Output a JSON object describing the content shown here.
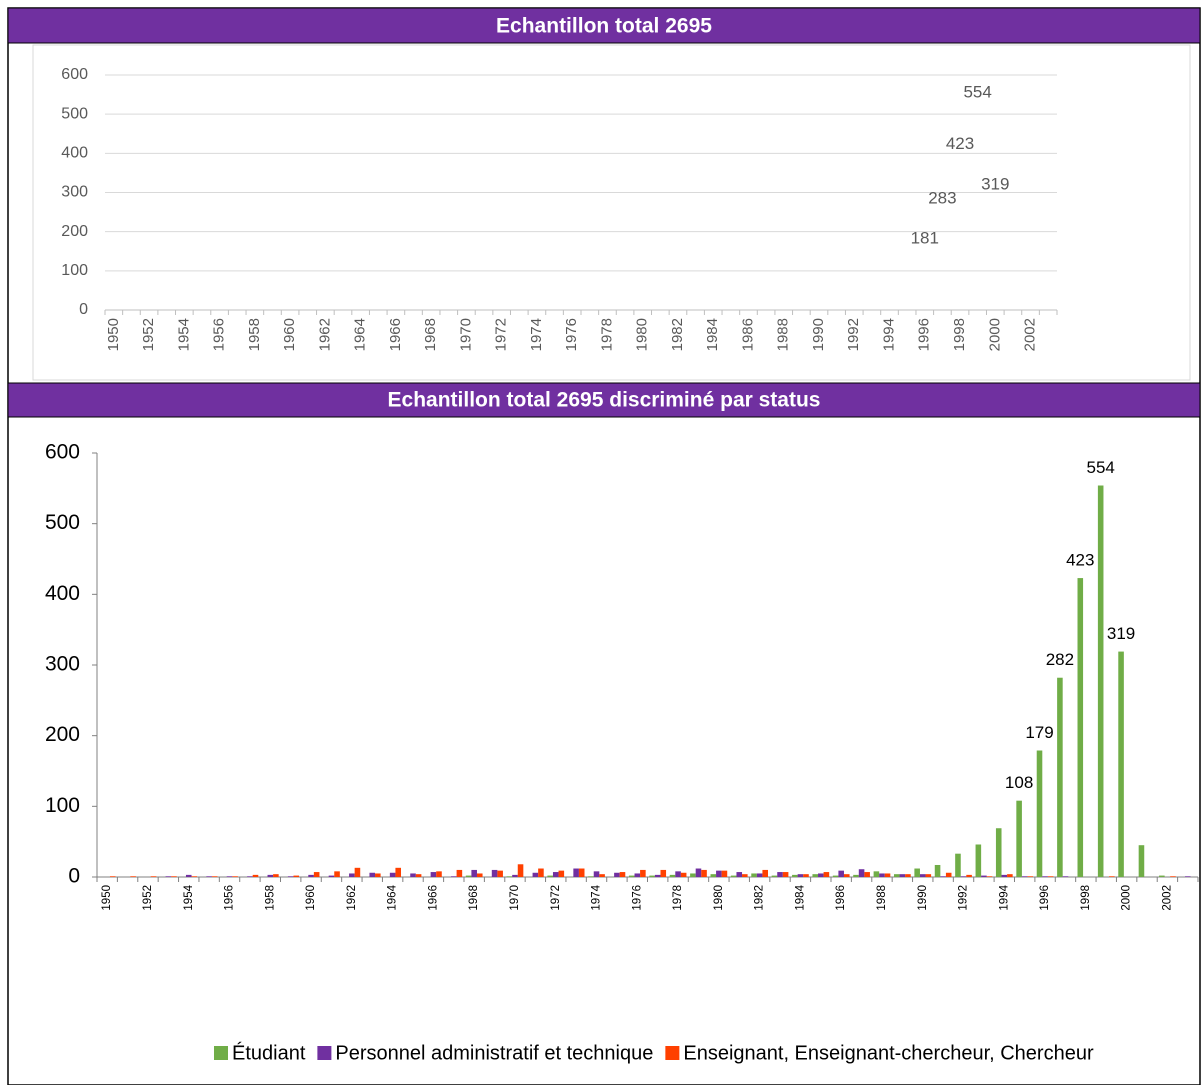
{
  "chart_data": [
    {
      "type": "line",
      "title": "Echantillon total 2695",
      "categories": [
        "1950",
        null,
        "1952",
        null,
        "1954",
        null,
        "1956",
        null,
        "1958",
        null,
        "1960",
        null,
        "1962",
        null,
        "1964",
        null,
        "1966",
        null,
        "1968",
        null,
        "1970",
        null,
        "1972",
        null,
        "1974",
        null,
        "1976",
        null,
        "1978",
        null,
        "1980",
        null,
        "1982",
        null,
        "1984",
        null,
        "1986",
        null,
        "1988",
        null,
        "1990",
        null,
        "1992",
        null,
        "1994",
        null,
        "1996",
        null,
        "1998",
        null,
        "2000",
        null,
        "2002",
        null
      ],
      "values": [
        null,
        null,
        null,
        null,
        null,
        null,
        null,
        null,
        null,
        null,
        null,
        null,
        null,
        null,
        null,
        null,
        null,
        null,
        null,
        null,
        null,
        null,
        null,
        null,
        null,
        null,
        null,
        null,
        null,
        null,
        null,
        null,
        null,
        null,
        null,
        null,
        null,
        null,
        null,
        null,
        null,
        null,
        null,
        null,
        null,
        null,
        181,
        283,
        423,
        554,
        319,
        null,
        null,
        null
      ],
      "ylim": [
        0,
        600
      ],
      "yticks": [
        0,
        100,
        200,
        300,
        400,
        500,
        600
      ],
      "grid": true,
      "color": "#595959"
    },
    {
      "type": "bar",
      "title": "Echantillon total 2695 discriminé par status",
      "categories": [
        "1950",
        null,
        "1952",
        null,
        "1954",
        null,
        "1956",
        null,
        "1958",
        null,
        "1960",
        null,
        "1962",
        null,
        "1964",
        null,
        "1966",
        null,
        "1968",
        null,
        "1970",
        null,
        "1972",
        null,
        "1974",
        null,
        "1976",
        null,
        "1978",
        null,
        "1980",
        null,
        "1982",
        null,
        "1984",
        null,
        "1986",
        null,
        "1988",
        null,
        "1990",
        null,
        "1992",
        null,
        "1994",
        null,
        "1996",
        null,
        "1998",
        null,
        "2000",
        null,
        "2002",
        null
      ],
      "series": [
        {
          "name": "Étudiant",
          "color": "#70ad47",
          "values": [
            0,
            0,
            0,
            0,
            0,
            0,
            0,
            0,
            0,
            0,
            0,
            0,
            0,
            0,
            0,
            0,
            0,
            0,
            2,
            0,
            1,
            0,
            2,
            0,
            1,
            0,
            2,
            2,
            3,
            5,
            4,
            2,
            5,
            2,
            3,
            4,
            2,
            3,
            8,
            4,
            12,
            17,
            33,
            46,
            69,
            108,
            179,
            282,
            423,
            554,
            319,
            45,
            2,
            0
          ],
          "value_labels": [
            null,
            null,
            null,
            null,
            null,
            null,
            null,
            null,
            null,
            null,
            null,
            null,
            null,
            null,
            null,
            null,
            null,
            null,
            null,
            null,
            null,
            null,
            null,
            null,
            null,
            null,
            null,
            null,
            null,
            null,
            null,
            null,
            null,
            null,
            null,
            null,
            null,
            null,
            null,
            null,
            null,
            null,
            null,
            null,
            null,
            "108",
            "179",
            "282",
            "423",
            "554",
            "319",
            null,
            null,
            null
          ]
        },
        {
          "name": "Personnel administratif et technique",
          "color": "#7030a0",
          "values": [
            0,
            0,
            0,
            1,
            3,
            1,
            1,
            1,
            3,
            1,
            3,
            2,
            5,
            6,
            6,
            5,
            7,
            1,
            10,
            10,
            3,
            6,
            7,
            12,
            8,
            6,
            5,
            3,
            8,
            12,
            9,
            7,
            5,
            7,
            4,
            5,
            9,
            11,
            5,
            4,
            4,
            1,
            1,
            2,
            3,
            1,
            1,
            1,
            0,
            0,
            0,
            0,
            0,
            1
          ]
        },
        {
          "name": "Enseignant, Enseignant-chercheur, Chercheur",
          "color": "#ff4000",
          "values": [
            1,
            1,
            1,
            1,
            1,
            1,
            1,
            3,
            4,
            2,
            7,
            8,
            13,
            5,
            13,
            4,
            8,
            10,
            5,
            9,
            18,
            12,
            9,
            12,
            4,
            7,
            10,
            10,
            6,
            10,
            9,
            4,
            10,
            7,
            4,
            7,
            4,
            7,
            5,
            4,
            4,
            6,
            3,
            1,
            4,
            1,
            1,
            0,
            0,
            1,
            0,
            0,
            1,
            0
          ]
        }
      ],
      "ylim": [
        0,
        600
      ],
      "yticks": [
        0,
        100,
        200,
        300,
        400,
        500,
        600
      ],
      "grid": false,
      "legend": "bottom"
    }
  ]
}
